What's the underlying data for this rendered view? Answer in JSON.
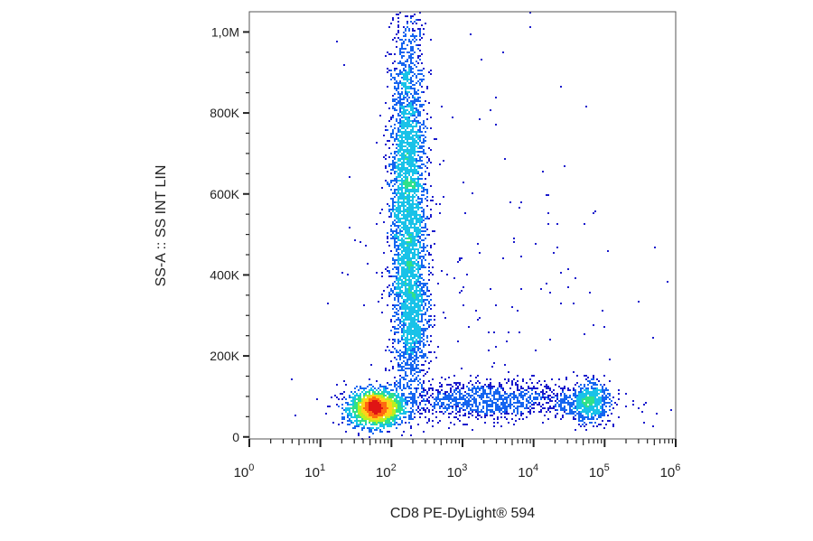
{
  "chart_data": {
    "type": "scatter",
    "title": "",
    "xlabel": "CD8 PE-DyLight® 594",
    "ylabel": "SS-A :: SS INT LIN",
    "x_scale": "log",
    "xlim": [
      1,
      1000000
    ],
    "ylim": [
      -5000,
      1050000
    ],
    "x_ticks": [
      {
        "base": "10",
        "exp": "0",
        "value": 1
      },
      {
        "base": "10",
        "exp": "1",
        "value": 10
      },
      {
        "base": "10",
        "exp": "2",
        "value": 100
      },
      {
        "base": "10",
        "exp": "3",
        "value": 1000
      },
      {
        "base": "10",
        "exp": "4",
        "value": 10000
      },
      {
        "base": "10",
        "exp": "5",
        "value": 100000
      },
      {
        "base": "10",
        "exp": "6",
        "value": 1000000
      }
    ],
    "y_ticks": [
      {
        "label": "0",
        "value": 0
      },
      {
        "label": "200K",
        "value": 200000
      },
      {
        "label": "400K",
        "value": 400000
      },
      {
        "label": "600K",
        "value": 600000
      },
      {
        "label": "800K",
        "value": 800000
      },
      {
        "label": "1,0M",
        "value": 1000000
      }
    ],
    "grid": false,
    "color_scale": [
      "#1a1acc",
      "#1565f0",
      "#19c2e8",
      "#2fe08a",
      "#b8f020",
      "#ffd21a",
      "#ff6a10",
      "#e01414"
    ],
    "populations": [
      {
        "x_center": 60,
        "y_center": 70000,
        "x_spread_decades": 0.18,
        "y_spread": 22000,
        "count": 1800,
        "peak_density": 1.0
      },
      {
        "x_center": 170,
        "y_center": 600000,
        "x_spread_decades": 0.13,
        "y_spread": 220000,
        "count": 3000,
        "peak_density": 0.75
      },
      {
        "x_center": 200,
        "y_center": 300000,
        "x_spread_decades": 0.12,
        "y_spread": 90000,
        "count": 900,
        "peak_density": 0.5
      },
      {
        "x_center": 60000,
        "y_center": 85000,
        "x_spread_decades": 0.15,
        "y_spread": 25000,
        "count": 550,
        "peak_density": 0.6
      },
      {
        "x_center": 2000,
        "y_center": 90000,
        "x_spread_decades": 0.8,
        "y_spread": 25000,
        "count": 1300,
        "peak_density": 0.3
      },
      {
        "x_center": 2000,
        "y_center": 450000,
        "x_spread_decades": 1.0,
        "y_spread": 250000,
        "count": 160,
        "peak_density": 0.05
      }
    ]
  }
}
